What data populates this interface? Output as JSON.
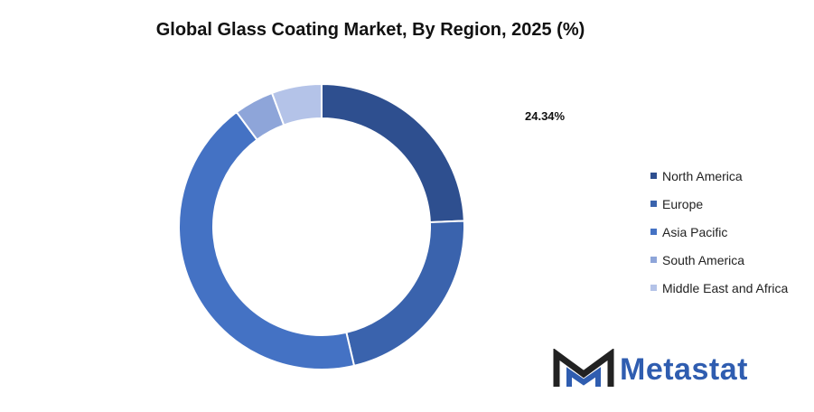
{
  "chart_data": {
    "type": "pie",
    "title": "Global Glass Coating Market, By Region, 2025 (%)",
    "categories": [
      "North America",
      "Europe",
      "Asia Pacific",
      "South America",
      "Middle East and Africa"
    ],
    "values": [
      24.34,
      22.0,
      43.5,
      4.5,
      5.66
    ],
    "colors": [
      "#2e4f8f",
      "#3a63ad",
      "#4472c4",
      "#8ea5d9",
      "#b4c3e8"
    ],
    "data_labels": [
      "24.34%"
    ],
    "legend_position": "right"
  },
  "brand": {
    "name": "Metastat"
  }
}
